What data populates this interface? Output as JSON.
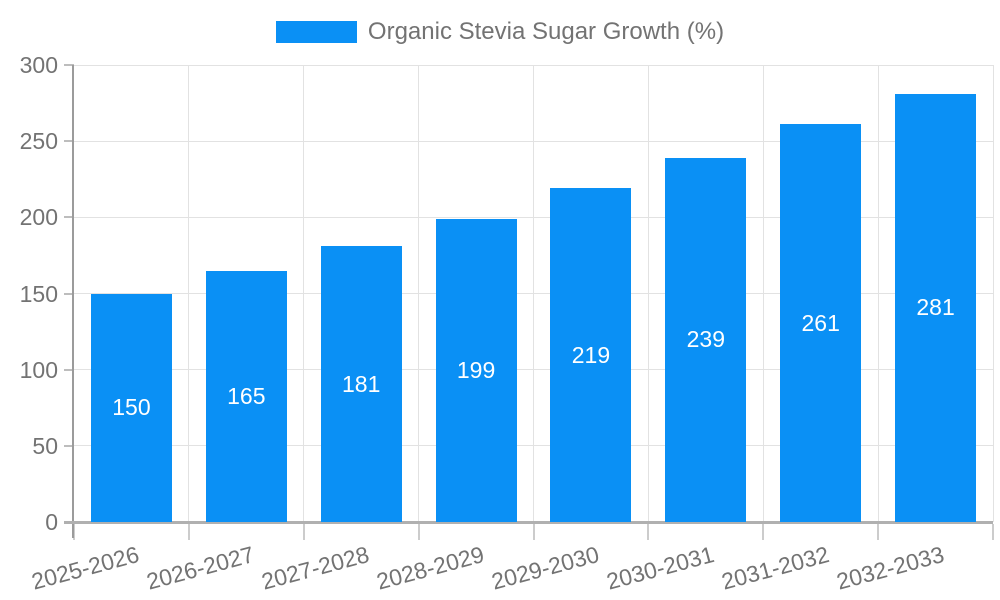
{
  "chart_data": {
    "type": "bar",
    "title": "",
    "categories": [
      "2025-2026",
      "2026-2027",
      "2027-2028",
      "2028-2029",
      "2029-2030",
      "2030-2031",
      "2031-2032",
      "2032-2033"
    ],
    "series": [
      {
        "name": "Organic Stevia Sugar Growth (%)",
        "color": "#0a90f5",
        "values": [
          150,
          165,
          181,
          199,
          219,
          239,
          261,
          281
        ]
      }
    ],
    "value_labels": [
      "150",
      "165",
      "181",
      "199",
      "219",
      "239",
      "261",
      "281"
    ],
    "xlabel": "",
    "ylabel": "",
    "ylim": [
      0,
      300
    ],
    "yticks": [
      0,
      50,
      100,
      150,
      200,
      250,
      300
    ],
    "grid": "on",
    "legend_position": "top",
    "value_label_position": "inside-center",
    "colors": {
      "bar_fill": "#0a90f5",
      "value_label_text": "#ffffff",
      "axis_text": "#737373",
      "legend_text": "#737373",
      "gridline": "#e2e2e2",
      "axis_line": "#9b9b9b",
      "background": "#ffffff"
    }
  }
}
